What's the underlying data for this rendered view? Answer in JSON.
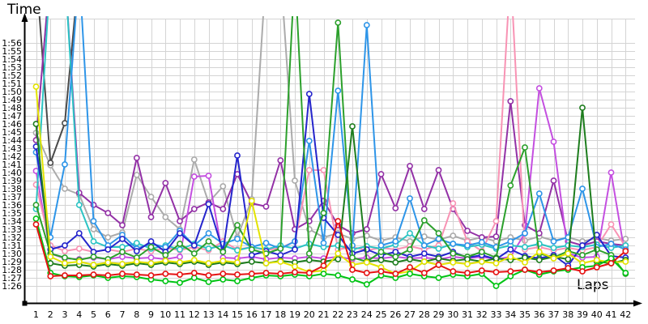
{
  "titles": {
    "y_axis": "Time",
    "x_axis": "Laps"
  },
  "chart_data": {
    "type": "line",
    "title": "",
    "xlabel": "Laps",
    "ylabel": "Time",
    "x_tick_labels": [
      1,
      2,
      3,
      4,
      5,
      6,
      7,
      8,
      9,
      10,
      11,
      12,
      13,
      14,
      15,
      16,
      17,
      18,
      19,
      20,
      21,
      22,
      23,
      24,
      25,
      26,
      27,
      28,
      29,
      30,
      31,
      32,
      33,
      34,
      35,
      36,
      37,
      38,
      39,
      40,
      41,
      42
    ],
    "y_tick_labels": [
      "1:26",
      "1:27",
      "1:28",
      "1:29",
      "1:30",
      "1:31",
      "1:32",
      "1:33",
      "1:34",
      "1:35",
      "1:36",
      "1:37",
      "1:38",
      "1:39",
      "1:40",
      "1:41",
      "1:42",
      "1:43",
      "1:44",
      "1:45",
      "1:46",
      "1:47",
      "1:48",
      "1:49",
      "1:50",
      "1:51",
      "1:52",
      "1:53",
      "1:54",
      "1:55",
      "1:56"
    ],
    "ylim_seconds": [
      86,
      116
    ],
    "grid": true,
    "legend": "none",
    "units": "lap time M:SS, values below are seconds; values >119 are spikes clipped at the plot top; null = no lap recorded",
    "series": [
      {
        "name": "Silver",
        "color": "#ababab",
        "values": [
          104.9,
          100.9,
          98.0,
          97.3,
          93.0,
          92.0,
          92.6,
          99.7,
          97.0,
          94.5,
          93.0,
          101.6,
          96.3,
          98.3,
          92.0,
          96.7,
          125,
          125,
          99.0,
          93.0,
          92.0,
          92.5,
          91.8,
          92.2,
          91.6,
          92.0,
          91.5,
          92.1,
          91.7,
          92.2,
          91.6,
          92.0,
          91.5,
          92.0,
          91.6,
          92.1,
          91.6,
          92.0,
          91.5,
          91.9,
          91.6,
          91.8
        ]
      },
      {
        "name": "Dark Gray",
        "color": "#4a4a4a",
        "values": [
          125,
          101.2,
          106.1,
          125,
          null,
          null,
          null,
          null,
          null,
          null,
          null,
          null,
          null,
          null,
          null,
          null,
          null,
          null,
          null,
          null,
          null,
          null,
          null,
          null,
          null,
          null,
          null,
          null,
          null,
          null,
          null,
          null,
          null,
          null,
          null,
          null,
          null,
          null,
          null,
          null,
          null,
          null
        ]
      },
      {
        "name": "Purple",
        "color": "#9331a6",
        "values": [
          104.0,
          125,
          125,
          97.5,
          96.0,
          95.0,
          93.5,
          101.8,
          94.5,
          98.7,
          94.0,
          95.5,
          96.3,
          95.5,
          99.8,
          96.2,
          95.8,
          101.5,
          93.0,
          94.0,
          96.5,
          93.5,
          92.5,
          93.0,
          99.8,
          95.6,
          100.8,
          95.5,
          100.3,
          95.5,
          92.8,
          92.0,
          92.1,
          108.8,
          93.5,
          92.5,
          99.0,
          91.5,
          91.0,
          91.5,
          91.2,
          91.0
        ]
      },
      {
        "name": "Violet",
        "color": "#c44fe0",
        "values": [
          100.2,
          90.0,
          89.4,
          89.3,
          89.5,
          89.3,
          89.6,
          89.4,
          89.5,
          89.3,
          89.6,
          99.5,
          99.6,
          89.5,
          89.4,
          89.6,
          89.3,
          89.5,
          89.4,
          89.6,
          89.4,
          89.6,
          89.3,
          89.5,
          89.4,
          89.6,
          89.4,
          89.5,
          89.3,
          89.6,
          89.4,
          89.6,
          89.3,
          89.6,
          92.5,
          110.4,
          103.8,
          90.0,
          89.5,
          89.6,
          100.0,
          89.4
        ]
      },
      {
        "name": "Pink",
        "color": "#f893b4",
        "values": [
          98.5,
          91.0,
          90.3,
          90.6,
          90.2,
          90.5,
          90.2,
          90.6,
          90.3,
          90.7,
          90.4,
          90.8,
          90.4,
          91.5,
          90.5,
          90.8,
          90.4,
          90.7,
          91.5,
          100.3,
          100.3,
          90.5,
          90.8,
          90.4,
          90.7,
          90.5,
          90.9,
          90.5,
          91.0,
          96.2,
          91.5,
          90.3,
          94.0,
          125,
          90.5,
          90.8,
          90.4,
          90.7,
          90.4,
          90.8,
          93.6,
          90.8
        ]
      },
      {
        "name": "Cyan",
        "color": "#2cc4c4",
        "values": [
          95.5,
          125,
          125,
          96.0,
          91.5,
          90.8,
          90.8,
          91.3,
          90.6,
          91.0,
          90.5,
          91.2,
          90.6,
          91.0,
          90.4,
          90.8,
          90.5,
          91.0,
          90.6,
          91.2,
          90.8,
          91.0,
          90.5,
          90.9,
          90.6,
          91.1,
          92.5,
          91.0,
          90.6,
          91.2,
          90.8,
          91.1,
          90.6,
          91.0,
          90.8,
          91.2,
          90.7,
          91.0,
          90.8,
          91.1,
          90.7,
          91.0
        ]
      },
      {
        "name": "Light Blue",
        "color": "#2e95e8",
        "values": [
          102.5,
          92.0,
          101.0,
          125,
          94.0,
          91.0,
          92.3,
          90.6,
          91.2,
          90.8,
          92.8,
          91.0,
          92.5,
          91.2,
          91.8,
          90.8,
          91.3,
          90.6,
          91.5,
          103.9,
          91.3,
          110.1,
          91.0,
          118.2,
          91.0,
          91.5,
          96.8,
          91.0,
          91.8,
          91.2,
          91.0,
          91.4,
          90.8,
          91.5,
          92.5,
          97.4,
          91.5,
          92.0,
          98.0,
          90.8,
          91.2,
          90.5
        ]
      },
      {
        "name": "Blue",
        "color": "#2525cc",
        "values": [
          103.2,
          90.5,
          91.0,
          92.5,
          90.2,
          90.5,
          91.8,
          90.3,
          91.5,
          90.2,
          92.5,
          91.0,
          96.1,
          90.3,
          102.1,
          89.8,
          90.3,
          89.8,
          90.5,
          109.7,
          94.4,
          92.3,
          90.0,
          90.5,
          89.8,
          90.2,
          89.6,
          90.0,
          89.6,
          90.2,
          89.5,
          89.8,
          89.3,
          90.5,
          89.7,
          89.4,
          89.8,
          88.5,
          91.0,
          92.3,
          89.7,
          89.5
        ]
      },
      {
        "name": "Green",
        "color": "#2ca02c",
        "values": [
          96.0,
          90.0,
          89.5,
          89.2,
          89.6,
          89.3,
          90.2,
          89.5,
          90.8,
          89.8,
          91.2,
          90.0,
          91.5,
          90.2,
          93.5,
          90.5,
          90.0,
          90.6,
          125,
          90.0,
          95.0,
          118.5,
          89.5,
          89.0,
          90.2,
          89.6,
          90.5,
          94.1,
          92.5,
          90.0,
          89.6,
          90.2,
          89.5,
          98.4,
          103.1,
          90.0,
          89.5,
          90.3,
          89.8,
          90.5,
          89.8,
          87.5
        ]
      },
      {
        "name": "Dark Green",
        "color": "#1e7d1e",
        "values": [
          106.0,
          88.8,
          88.5,
          88.6,
          88.4,
          88.7,
          88.5,
          88.8,
          88.6,
          88.9,
          88.7,
          89.0,
          88.6,
          88.9,
          88.7,
          89.0,
          88.8,
          89.1,
          88.9,
          89.2,
          89.0,
          89.3,
          105.7,
          89.0,
          89.2,
          88.9,
          89.3,
          89.0,
          89.4,
          89.1,
          89.3,
          89.0,
          89.4,
          89.2,
          89.5,
          89.2,
          89.6,
          89.3,
          108.0,
          89.0,
          88.8,
          89.2
        ]
      },
      {
        "name": "Yellow",
        "color": "#e3e300",
        "values": [
          110.6,
          89.6,
          88.8,
          89.0,
          88.6,
          88.9,
          88.7,
          89.0,
          88.8,
          89.1,
          88.9,
          89.2,
          88.8,
          89.1,
          88.9,
          96.5,
          88.8,
          89.0,
          88.4,
          87.7,
          87.9,
          90.0,
          88.6,
          88.9,
          88.3,
          87.5,
          87.8,
          89.0,
          88.6,
          88.9,
          88.7,
          89.0,
          88.8,
          89.6,
          88.9,
          90.2,
          89.4,
          90.0,
          88.8,
          89.2,
          88.9,
          89.0
        ]
      },
      {
        "name": "Bright Green",
        "color": "#00c414",
        "values": [
          94.3,
          87.6,
          87.2,
          87.1,
          87.3,
          87.0,
          87.2,
          87.1,
          86.8,
          86.6,
          86.4,
          87.0,
          86.5,
          86.8,
          86.6,
          87.0,
          87.3,
          87.2,
          87.4,
          87.2,
          87.5,
          87.3,
          86.8,
          86.2,
          87.3,
          87.0,
          87.5,
          87.2,
          87.0,
          87.4,
          87.2,
          87.5,
          86.0,
          87.2,
          88.0,
          87.4,
          87.8,
          88.0,
          88.3,
          88.5,
          89.4,
          87.6
        ]
      },
      {
        "name": "Red",
        "color": "#e51212",
        "values": [
          93.6,
          87.2,
          87.3,
          87.3,
          87.4,
          87.3,
          87.5,
          87.4,
          87.3,
          87.5,
          87.4,
          87.6,
          87.3,
          87.5,
          87.4,
          87.5,
          87.6,
          87.5,
          87.7,
          87.6,
          88.5,
          94.0,
          88.0,
          87.6,
          87.8,
          87.5,
          88.3,
          87.6,
          88.6,
          87.8,
          87.6,
          87.9,
          87.7,
          87.8,
          88.0,
          87.7,
          87.9,
          88.2,
          87.8,
          88.3,
          88.8,
          90.3
        ]
      }
    ]
  },
  "style": {
    "grid_color": "#d4d4d4",
    "axis_color": "#000000",
    "background": "#ffffff",
    "marker": "open-circle-white-fill"
  }
}
